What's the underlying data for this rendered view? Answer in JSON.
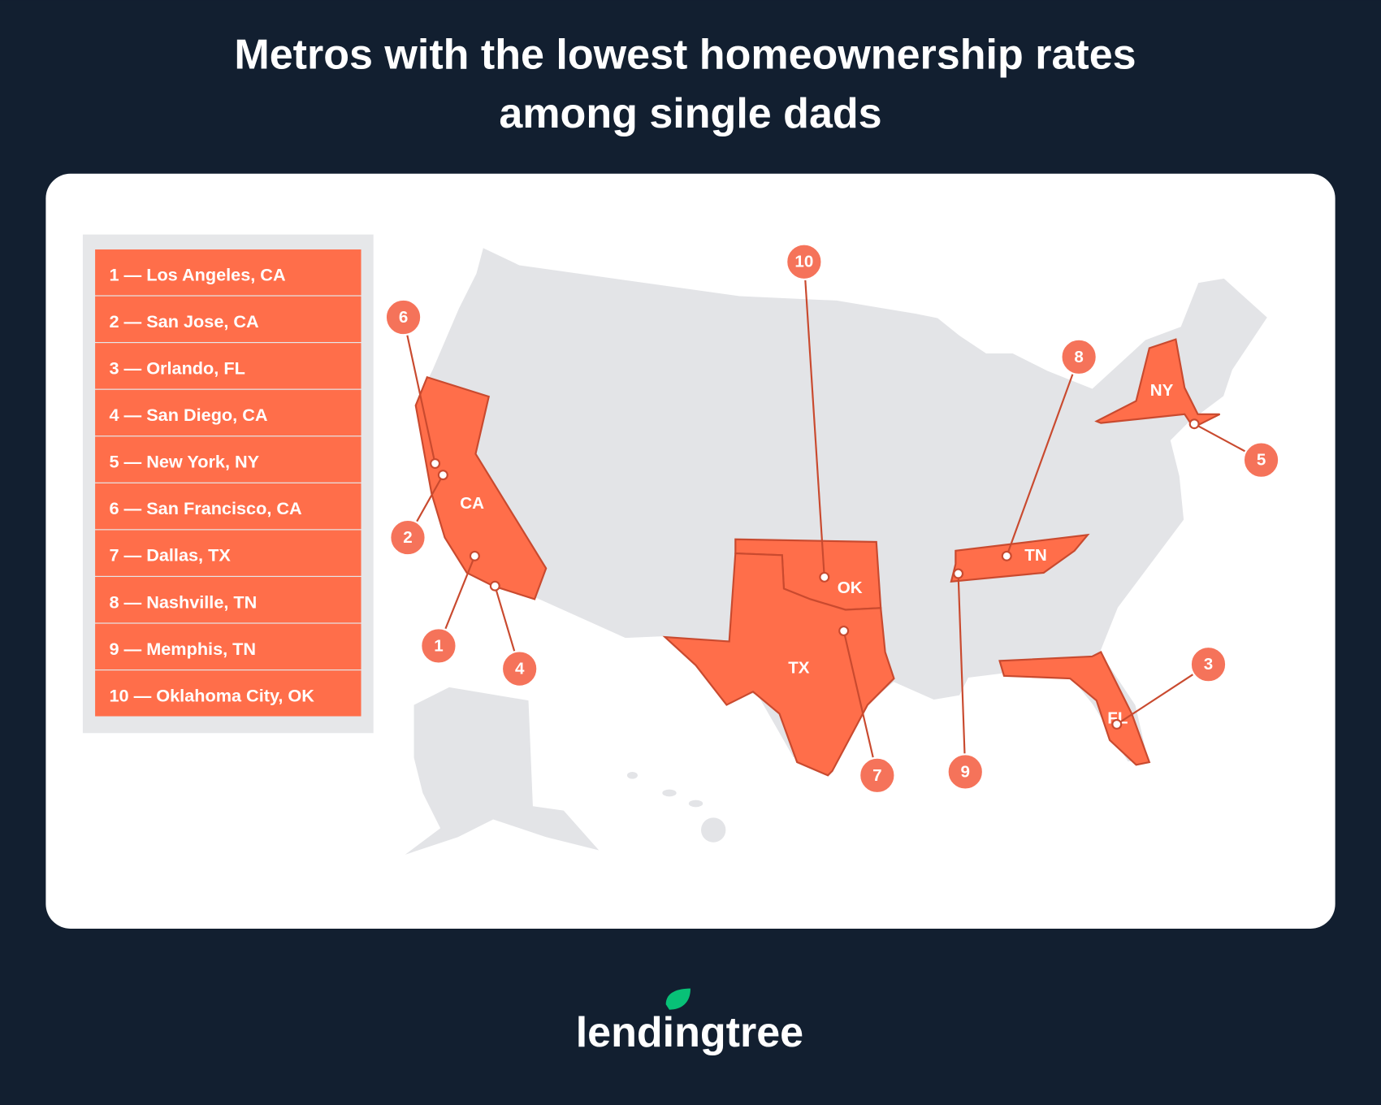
{
  "title": [
    "Metros with the lowest homeownership rates",
    "among single dads"
  ],
  "list": [
    "1 — Los Angeles, CA",
    "2 — San Jose, CA",
    "3 — Orlando, FL",
    "4 — San Diego, CA",
    "5 — New York, NY",
    "6 — San Francisco, CA",
    "7 — Dallas, TX",
    "8 — Nashville, TN",
    "9 — Memphis, TN",
    "10 — Oklahoma City, OK"
  ],
  "states": [
    "CA",
    "OK",
    "TX",
    "TN",
    "NY",
    "FL"
  ],
  "markers": [
    "1",
    "2",
    "3",
    "4",
    "5",
    "6",
    "7",
    "8",
    "9",
    "10"
  ],
  "logo": "lendingtree"
}
